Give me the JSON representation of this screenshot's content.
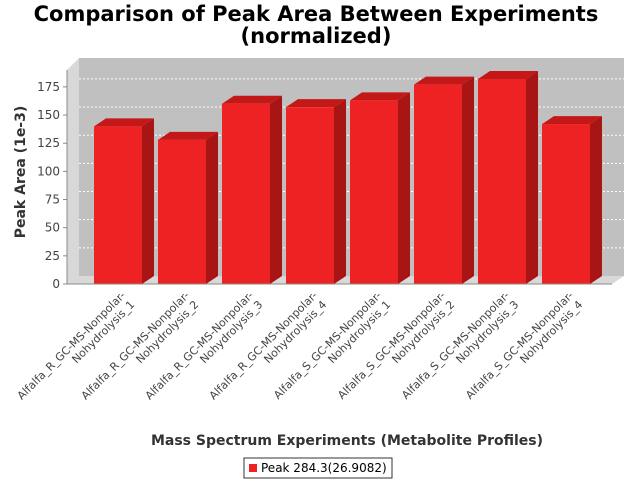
{
  "chart_data": {
    "type": "bar",
    "title_line1": "Comparison of Peak Area Between Experiments",
    "title_line2": "(normalized)",
    "xlabel": "Mass Spectrum Experiments (Metabolite Profiles)",
    "ylabel": "Peak Area (1e-3)",
    "ylim": [
      0,
      190
    ],
    "yticks": [
      "0",
      "25",
      "50",
      "75",
      "100",
      "125",
      "150",
      "175"
    ],
    "grid": true,
    "legend_position": "bottom-center",
    "categories": [
      [
        "Alfalfa_R_GC-MS-Nonpolar-",
        "Nohydrolysis_1"
      ],
      [
        "Alfalfa_R_GC-MS-Nonpolar-",
        "Nohydrolysis_2"
      ],
      [
        "Alfalfa_R_GC-MS-Nonpolar-",
        "Nohydrolysis_3"
      ],
      [
        "Alfalfa_R_GC-MS-Nonpolar-",
        "Nohydrolysis_4"
      ],
      [
        "Alfalfa_S_GC-MS-Nonpolar-",
        "Nohydrolysis_1"
      ],
      [
        "Alfalfa_S_GC-MS-Nonpolar-",
        "Nohydrolysis_2"
      ],
      [
        "Alfalfa_S_GC-MS-Nonpolar-",
        "Nohydrolysis_3"
      ],
      [
        "Alfalfa_S_GC-MS-Nonpolar-",
        "Nohydrolysis_4"
      ]
    ],
    "series": [
      {
        "name": "Peak 284.3(26.9082)",
        "color": "#ee2222",
        "values": [
          140,
          128,
          160,
          157,
          163,
          177,
          182,
          142
        ]
      }
    ]
  }
}
